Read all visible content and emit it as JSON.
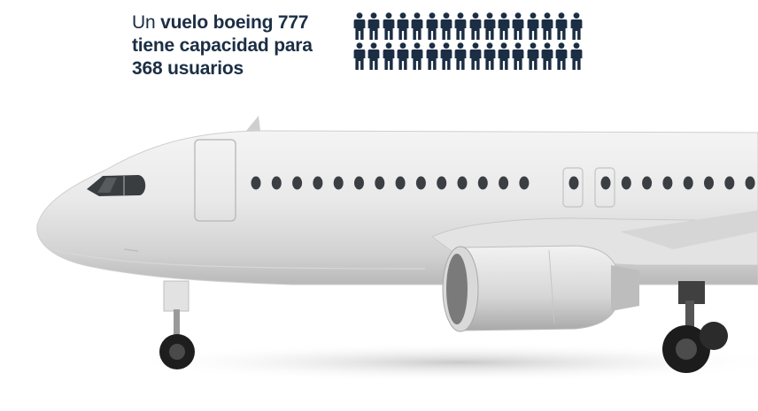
{
  "headline": {
    "prefix": "Un ",
    "bold_1": "vuelo boeing 777",
    "bold_2": "tiene capacidad para",
    "bold_3": "368 usuarios"
  },
  "people_icons": {
    "rows": 2,
    "per_row": 16,
    "icon": "person-icon",
    "color": "#1b2e44"
  },
  "illustration": {
    "subject": "airplane-icon"
  }
}
